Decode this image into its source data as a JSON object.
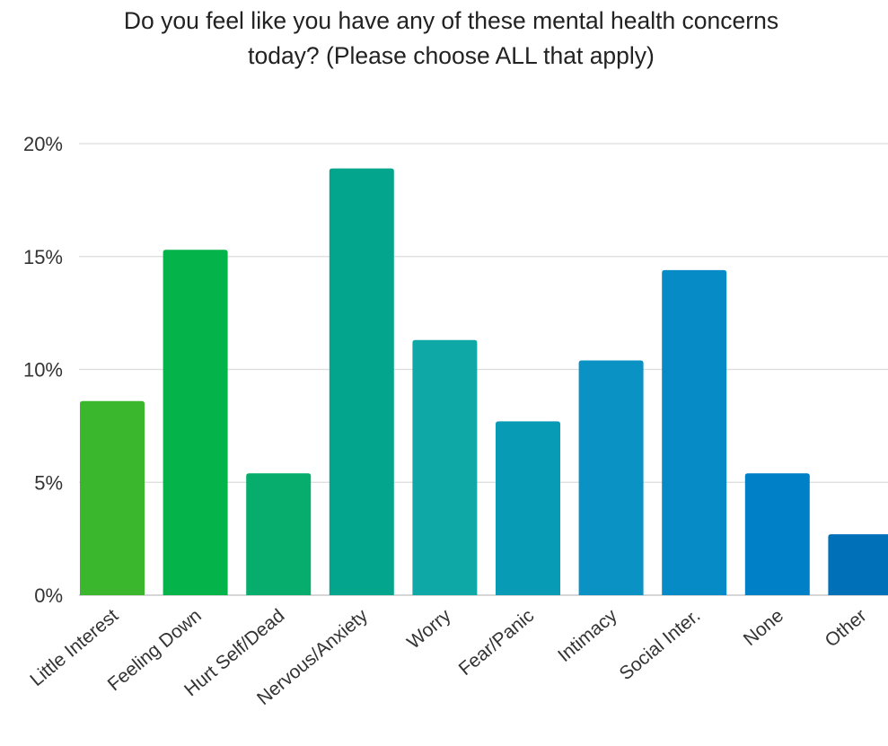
{
  "chart_data": {
    "type": "bar",
    "title_lines": [
      "Do you feel like you have any of these mental health concerns",
      "today? (Please choose ALL that apply)"
    ],
    "categories": [
      "Little Interest",
      "Feeling Down",
      "Hurt Self/Dead",
      "Nervous/Anxiety",
      "Worry",
      "Fear/Panic",
      "Intimacy",
      "Social Inter.",
      "None",
      "Other"
    ],
    "values": [
      8.6,
      15.3,
      5.4,
      18.9,
      11.3,
      7.7,
      10.4,
      14.4,
      5.4,
      2.7
    ],
    "colors": [
      "#3bb72e",
      "#05b34b",
      "#06ad6c",
      "#03a68d",
      "#0ea9a7",
      "#079bb6",
      "#0b92c5",
      "#078bc6",
      "#0080c7",
      "#0070b8"
    ],
    "ylim": [
      0,
      20
    ],
    "yticks": [
      "0%",
      "5%",
      "10%",
      "15%",
      "20%"
    ],
    "ytick_values": [
      0,
      5,
      10,
      15,
      20
    ],
    "xlabel": "",
    "ylabel": "",
    "grid": true,
    "legend": "none"
  }
}
